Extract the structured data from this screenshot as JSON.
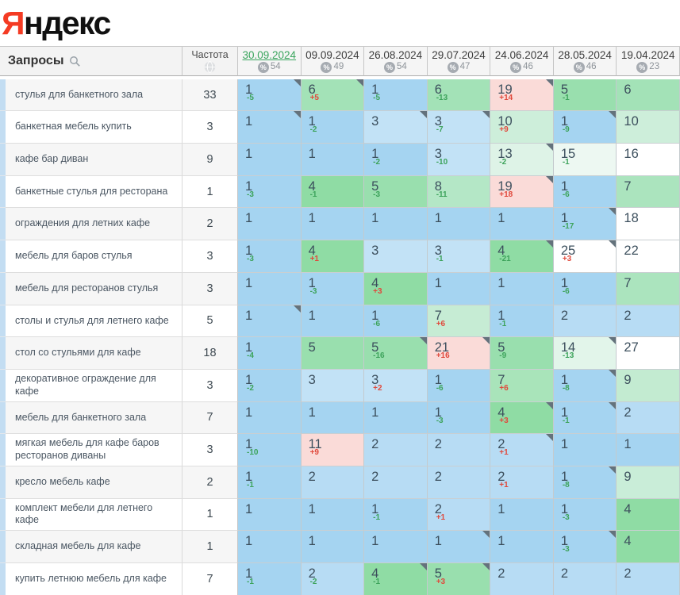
{
  "logo": {
    "first_letter": "Я",
    "rest": "ндекс"
  },
  "header": {
    "queries_label": "Запросы",
    "frequency_label": "Частота",
    "dates": [
      {
        "label": "30.09.2024",
        "percent": "54",
        "active": true
      },
      {
        "label": "09.09.2024",
        "percent": "49",
        "active": false
      },
      {
        "label": "26.08.2024",
        "percent": "54",
        "active": false
      },
      {
        "label": "29.07.2024",
        "percent": "47",
        "active": false
      },
      {
        "label": "24.06.2024",
        "percent": "46",
        "active": false
      },
      {
        "label": "28.05.2024",
        "percent": "46",
        "active": false
      },
      {
        "label": "19.04.2024",
        "percent": "23",
        "active": false
      }
    ]
  },
  "palette": {
    "delta_improve": "#3da35b",
    "delta_decline": "#e0493c",
    "active_date_green": "#3ba55e",
    "top1_blue": "#a5d4f1",
    "pink_drop": "#fadbd8",
    "logo_red": "#f43b23"
  },
  "rows": [
    {
      "query": "стулья для банкетного зала",
      "frequency": "33",
      "cells": [
        {
          "v": "1",
          "d": "-5",
          "bg": "#a5d4f1",
          "corner": true
        },
        {
          "v": "6",
          "d": "+5",
          "bg": "#a3e2b7",
          "corner": true
        },
        {
          "v": "1",
          "d": "-5",
          "bg": "#a5d4f1",
          "corner": false
        },
        {
          "v": "6",
          "d": "-13",
          "bg": "#a3e2b7",
          "corner": false
        },
        {
          "v": "19",
          "d": "+14",
          "bg": "#fadbd8",
          "corner": true
        },
        {
          "v": "5",
          "d": "-1",
          "bg": "#99dfae",
          "corner": false
        },
        {
          "v": "6",
          "d": "",
          "bg": "#a3e2b7",
          "corner": false
        }
      ]
    },
    {
      "query": "банкетная мебель купить",
      "frequency": "3",
      "cells": [
        {
          "v": "1",
          "d": "",
          "bg": "#a5d4f1",
          "corner": true
        },
        {
          "v": "1",
          "d": "-2",
          "bg": "#a5d4f1",
          "corner": false
        },
        {
          "v": "3",
          "d": "",
          "bg": "#c2e2f6",
          "corner": true
        },
        {
          "v": "3",
          "d": "-7",
          "bg": "#c2e2f6",
          "corner": true
        },
        {
          "v": "10",
          "d": "+9",
          "bg": "#cdeeda",
          "corner": false
        },
        {
          "v": "1",
          "d": "-9",
          "bg": "#a5d4f1",
          "corner": true
        },
        {
          "v": "10",
          "d": "",
          "bg": "#cdeeda",
          "corner": false
        }
      ]
    },
    {
      "query": "кафе бар диван",
      "frequency": "9",
      "cells": [
        {
          "v": "1",
          "d": "",
          "bg": "#a5d4f1",
          "corner": false
        },
        {
          "v": "1",
          "d": "",
          "bg": "#a5d4f1",
          "corner": false
        },
        {
          "v": "1",
          "d": "-2",
          "bg": "#a5d4f1",
          "corner": false
        },
        {
          "v": "3",
          "d": "-10",
          "bg": "#c2e2f6",
          "corner": false
        },
        {
          "v": "13",
          "d": "-2",
          "bg": "#def3e7",
          "corner": true
        },
        {
          "v": "15",
          "d": "-1",
          "bg": "#edf8f2",
          "corner": false
        },
        {
          "v": "16",
          "d": "",
          "bg": "#ffffff",
          "corner": false
        }
      ]
    },
    {
      "query": "банкетные стулья для ресторана",
      "frequency": "1",
      "cells": [
        {
          "v": "1",
          "d": "-3",
          "bg": "#a5d4f1",
          "corner": false
        },
        {
          "v": "4",
          "d": "-1",
          "bg": "#8fdca4",
          "corner": false
        },
        {
          "v": "5",
          "d": "-3",
          "bg": "#99dfae",
          "corner": false
        },
        {
          "v": "8",
          "d": "-11",
          "bg": "#b4e7c6",
          "corner": false
        },
        {
          "v": "19",
          "d": "+18",
          "bg": "#fadbd8",
          "corner": true
        },
        {
          "v": "1",
          "d": "-6",
          "bg": "#a5d4f1",
          "corner": false
        },
        {
          "v": "7",
          "d": "",
          "bg": "#abe4be",
          "corner": false
        }
      ]
    },
    {
      "query": "ограждения для летних кафе",
      "frequency": "2",
      "cells": [
        {
          "v": "1",
          "d": "",
          "bg": "#a5d4f1",
          "corner": false
        },
        {
          "v": "1",
          "d": "",
          "bg": "#a5d4f1",
          "corner": false
        },
        {
          "v": "1",
          "d": "",
          "bg": "#a5d4f1",
          "corner": false
        },
        {
          "v": "1",
          "d": "",
          "bg": "#a5d4f1",
          "corner": false
        },
        {
          "v": "1",
          "d": "",
          "bg": "#a5d4f1",
          "corner": false
        },
        {
          "v": "1",
          "d": "-17",
          "bg": "#a5d4f1",
          "corner": true
        },
        {
          "v": "18",
          "d": "",
          "bg": "#ffffff",
          "corner": false
        }
      ]
    },
    {
      "query": "мебель для баров стулья",
      "frequency": "3",
      "cells": [
        {
          "v": "1",
          "d": "-3",
          "bg": "#a5d4f1",
          "corner": false
        },
        {
          "v": "4",
          "d": "+1",
          "bg": "#8fdca4",
          "corner": false
        },
        {
          "v": "3",
          "d": "",
          "bg": "#c2e2f6",
          "corner": false
        },
        {
          "v": "3",
          "d": "-1",
          "bg": "#c2e2f6",
          "corner": false
        },
        {
          "v": "4",
          "d": "-21",
          "bg": "#8fdca4",
          "corner": true
        },
        {
          "v": "25",
          "d": "+3",
          "bg": "#ffffff",
          "corner": true
        },
        {
          "v": "22",
          "d": "",
          "bg": "#ffffff",
          "corner": false
        }
      ]
    },
    {
      "query": "мебель для ресторанов стулья",
      "frequency": "3",
      "cells": [
        {
          "v": "1",
          "d": "",
          "bg": "#a5d4f1",
          "corner": false
        },
        {
          "v": "1",
          "d": "-3",
          "bg": "#a5d4f1",
          "corner": false
        },
        {
          "v": "4",
          "d": "+3",
          "bg": "#8fdca4",
          "corner": false
        },
        {
          "v": "1",
          "d": "",
          "bg": "#a5d4f1",
          "corner": false
        },
        {
          "v": "1",
          "d": "",
          "bg": "#a5d4f1",
          "corner": false
        },
        {
          "v": "1",
          "d": "-6",
          "bg": "#a5d4f1",
          "corner": false
        },
        {
          "v": "7",
          "d": "",
          "bg": "#abe4be",
          "corner": false
        }
      ]
    },
    {
      "query": "столы и стулья для летнего кафе",
      "frequency": "5",
      "cells": [
        {
          "v": "1",
          "d": "",
          "bg": "#a5d4f1",
          "corner": true
        },
        {
          "v": "1",
          "d": "",
          "bg": "#a5d4f1",
          "corner": false
        },
        {
          "v": "1",
          "d": "-6",
          "bg": "#a5d4f1",
          "corner": false
        },
        {
          "v": "7",
          "d": "+6",
          "bg": "#c6ecd4",
          "corner": false
        },
        {
          "v": "1",
          "d": "-1",
          "bg": "#a5d4f1",
          "corner": false
        },
        {
          "v": "2",
          "d": "",
          "bg": "#b7dcf4",
          "corner": false
        },
        {
          "v": "2",
          "d": "",
          "bg": "#b7dcf4",
          "corner": false
        }
      ]
    },
    {
      "query": "стол со стульями для кафе",
      "frequency": "18",
      "cells": [
        {
          "v": "1",
          "d": "-4",
          "bg": "#a5d4f1",
          "corner": false
        },
        {
          "v": "5",
          "d": "",
          "bg": "#99dfae",
          "corner": false
        },
        {
          "v": "5",
          "d": "-16",
          "bg": "#99dfae",
          "corner": true
        },
        {
          "v": "21",
          "d": "+16",
          "bg": "#fadbd8",
          "corner": true
        },
        {
          "v": "5",
          "d": "-9",
          "bg": "#99dfae",
          "corner": false
        },
        {
          "v": "14",
          "d": "-13",
          "bg": "#e2f5ea",
          "corner": true
        },
        {
          "v": "27",
          "d": "",
          "bg": "#ffffff",
          "corner": false
        }
      ]
    },
    {
      "query": "декоративное ограждение для кафе",
      "frequency": "3",
      "cells": [
        {
          "v": "1",
          "d": "-2",
          "bg": "#a5d4f1",
          "corner": false
        },
        {
          "v": "3",
          "d": "",
          "bg": "#c2e2f6",
          "corner": false
        },
        {
          "v": "3",
          "d": "+2",
          "bg": "#c2e2f6",
          "corner": false
        },
        {
          "v": "1",
          "d": "-6",
          "bg": "#a5d4f1",
          "corner": false
        },
        {
          "v": "7",
          "d": "+6",
          "bg": "#a9e4ba",
          "corner": false
        },
        {
          "v": "1",
          "d": "-8",
          "bg": "#a5d4f1",
          "corner": true
        },
        {
          "v": "9",
          "d": "",
          "bg": "#c3ebd1",
          "corner": false
        }
      ]
    },
    {
      "query": "мебель для банкетного зала",
      "frequency": "7",
      "cells": [
        {
          "v": "1",
          "d": "",
          "bg": "#a5d4f1",
          "corner": false
        },
        {
          "v": "1",
          "d": "",
          "bg": "#a5d4f1",
          "corner": false
        },
        {
          "v": "1",
          "d": "",
          "bg": "#a5d4f1",
          "corner": false
        },
        {
          "v": "1",
          "d": "-3",
          "bg": "#a5d4f1",
          "corner": false
        },
        {
          "v": "4",
          "d": "+3",
          "bg": "#8fdca4",
          "corner": true
        },
        {
          "v": "1",
          "d": "-1",
          "bg": "#a5d4f1",
          "corner": true
        },
        {
          "v": "2",
          "d": "",
          "bg": "#b7dcf4",
          "corner": false
        }
      ]
    },
    {
      "query": "мягкая мебель для кафе баров ресторанов диваны",
      "frequency": "3",
      "cells": [
        {
          "v": "1",
          "d": "-10",
          "bg": "#a5d4f1",
          "corner": false
        },
        {
          "v": "11",
          "d": "+9",
          "bg": "#fadbd8",
          "corner": false
        },
        {
          "v": "2",
          "d": "",
          "bg": "#b7dcf4",
          "corner": false
        },
        {
          "v": "2",
          "d": "",
          "bg": "#b7dcf4",
          "corner": false
        },
        {
          "v": "2",
          "d": "+1",
          "bg": "#b7dcf4",
          "corner": true
        },
        {
          "v": "1",
          "d": "",
          "bg": "#a5d4f1",
          "corner": false
        },
        {
          "v": "1",
          "d": "",
          "bg": "#a5d4f1",
          "corner": false
        }
      ]
    },
    {
      "query": "кресло мебель кафе",
      "frequency": "2",
      "cells": [
        {
          "v": "1",
          "d": "-1",
          "bg": "#a5d4f1",
          "corner": false
        },
        {
          "v": "2",
          "d": "",
          "bg": "#b7dcf4",
          "corner": false
        },
        {
          "v": "2",
          "d": "",
          "bg": "#b7dcf4",
          "corner": false
        },
        {
          "v": "2",
          "d": "",
          "bg": "#b7dcf4",
          "corner": false
        },
        {
          "v": "2",
          "d": "+1",
          "bg": "#b7dcf4",
          "corner": false
        },
        {
          "v": "1",
          "d": "-8",
          "bg": "#a5d4f1",
          "corner": true
        },
        {
          "v": "9",
          "d": "",
          "bg": "#c9edd8",
          "corner": false
        }
      ]
    },
    {
      "query": "комплект мебели для летнего кафе",
      "frequency": "1",
      "cells": [
        {
          "v": "1",
          "d": "",
          "bg": "#a5d4f1",
          "corner": false
        },
        {
          "v": "1",
          "d": "",
          "bg": "#a5d4f1",
          "corner": false
        },
        {
          "v": "1",
          "d": "-1",
          "bg": "#a5d4f1",
          "corner": false
        },
        {
          "v": "2",
          "d": "+1",
          "bg": "#b7dcf4",
          "corner": false
        },
        {
          "v": "1",
          "d": "",
          "bg": "#a5d4f1",
          "corner": false
        },
        {
          "v": "1",
          "d": "-3",
          "bg": "#a5d4f1",
          "corner": false
        },
        {
          "v": "4",
          "d": "",
          "bg": "#8fdca4",
          "corner": false
        }
      ]
    },
    {
      "query": "складная мебель для кафе",
      "frequency": "1",
      "cells": [
        {
          "v": "1",
          "d": "",
          "bg": "#a5d4f1",
          "corner": false
        },
        {
          "v": "1",
          "d": "",
          "bg": "#a5d4f1",
          "corner": false
        },
        {
          "v": "1",
          "d": "",
          "bg": "#a5d4f1",
          "corner": false
        },
        {
          "v": "1",
          "d": "",
          "bg": "#a5d4f1",
          "corner": true
        },
        {
          "v": "1",
          "d": "",
          "bg": "#a5d4f1",
          "corner": false
        },
        {
          "v": "1",
          "d": "-3",
          "bg": "#a5d4f1",
          "corner": true
        },
        {
          "v": "4",
          "d": "",
          "bg": "#8fdca4",
          "corner": false
        }
      ]
    },
    {
      "query": "купить летнюю мебель для кафе",
      "frequency": "7",
      "cells": [
        {
          "v": "1",
          "d": "-1",
          "bg": "#a5d4f1",
          "corner": false
        },
        {
          "v": "2",
          "d": "-2",
          "bg": "#b7dcf4",
          "corner": false
        },
        {
          "v": "4",
          "d": "-1",
          "bg": "#8fdca4",
          "corner": true
        },
        {
          "v": "5",
          "d": "+3",
          "bg": "#99dfae",
          "corner": true
        },
        {
          "v": "2",
          "d": "",
          "bg": "#b7dcf4",
          "corner": false
        },
        {
          "v": "2",
          "d": "",
          "bg": "#b7dcf4",
          "corner": false
        },
        {
          "v": "2",
          "d": "",
          "bg": "#b7dcf4",
          "corner": false
        }
      ]
    }
  ]
}
